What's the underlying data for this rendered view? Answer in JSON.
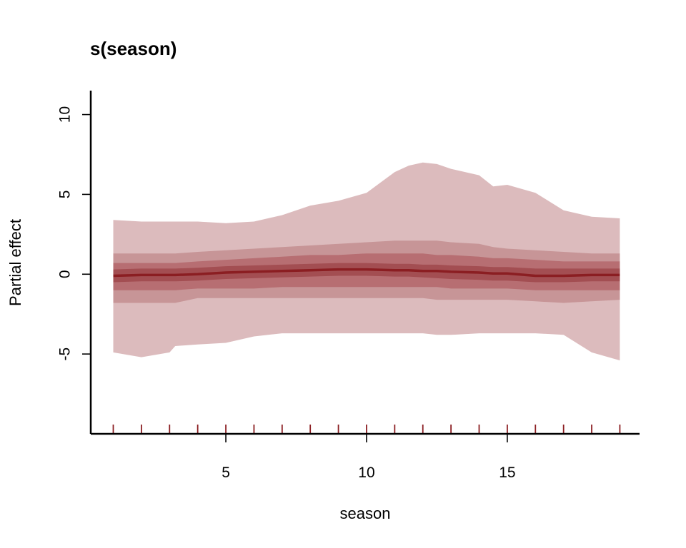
{
  "chart_data": {
    "type": "area",
    "title": "s(season)",
    "xlabel": "season",
    "ylabel": "Partial effect",
    "xlim": [
      0.2,
      19.7
    ],
    "ylim": [
      -10,
      11.5
    ],
    "x_ticks": [
      5,
      10,
      15
    ],
    "x_tick_labels": [
      "5",
      "10",
      "15"
    ],
    "y_ticks": [
      -5,
      0,
      5,
      10
    ],
    "y_tick_labels": [
      "-5",
      "0",
      "5",
      "10"
    ],
    "rug": [
      1,
      2,
      3,
      4,
      5,
      6,
      7,
      8,
      9,
      10,
      11,
      12,
      13,
      14,
      15,
      16,
      17,
      18,
      19
    ],
    "x": [
      1,
      2,
      3,
      3.2,
      4,
      5,
      6,
      7,
      8,
      9,
      10,
      11,
      11.5,
      12,
      12.5,
      13,
      14,
      14.5,
      15,
      16,
      17,
      18,
      19
    ],
    "median": [
      -0.1,
      -0.05,
      -0.05,
      -0.05,
      0.0,
      0.1,
      0.15,
      0.2,
      0.25,
      0.3,
      0.3,
      0.25,
      0.25,
      0.2,
      0.2,
      0.15,
      0.1,
      0.05,
      0.05,
      -0.1,
      -0.1,
      -0.05,
      -0.05
    ],
    "bands": [
      {
        "level": "outer",
        "upper": [
          3.4,
          3.3,
          3.3,
          3.3,
          3.3,
          3.2,
          3.3,
          3.7,
          4.3,
          4.6,
          5.1,
          6.4,
          6.8,
          7.0,
          6.9,
          6.6,
          6.2,
          5.5,
          5.6,
          5.1,
          4.0,
          3.6,
          3.5
        ],
        "lower": [
          -4.9,
          -5.2,
          -4.9,
          -4.5,
          -4.4,
          -4.3,
          -3.9,
          -3.7,
          -3.7,
          -3.7,
          -3.7,
          -3.7,
          -3.7,
          -3.7,
          -3.8,
          -3.8,
          -3.7,
          -3.7,
          -3.7,
          -3.7,
          -3.8,
          -4.9,
          -5.4
        ],
        "color": "#dcbbbd"
      },
      {
        "level": "middle",
        "upper": [
          1.3,
          1.3,
          1.3,
          1.3,
          1.4,
          1.5,
          1.6,
          1.7,
          1.8,
          1.9,
          2.0,
          2.1,
          2.1,
          2.1,
          2.1,
          2.0,
          1.9,
          1.7,
          1.6,
          1.5,
          1.4,
          1.3,
          1.3
        ],
        "lower": [
          -1.8,
          -1.8,
          -1.8,
          -1.8,
          -1.5,
          -1.5,
          -1.5,
          -1.5,
          -1.5,
          -1.5,
          -1.5,
          -1.5,
          -1.5,
          -1.5,
          -1.6,
          -1.6,
          -1.6,
          -1.6,
          -1.6,
          -1.7,
          -1.8,
          -1.7,
          -1.6
        ],
        "color": "#c79597"
      },
      {
        "level": "inner",
        "upper": [
          0.7,
          0.7,
          0.7,
          0.7,
          0.8,
          0.9,
          1.0,
          1.1,
          1.2,
          1.2,
          1.3,
          1.3,
          1.3,
          1.3,
          1.2,
          1.2,
          1.1,
          1.0,
          1.0,
          0.9,
          0.8,
          0.8,
          0.8
        ],
        "lower": [
          -1.0,
          -1.0,
          -1.0,
          -1.0,
          -0.9,
          -0.9,
          -0.9,
          -0.8,
          -0.8,
          -0.8,
          -0.8,
          -0.8,
          -0.8,
          -0.8,
          -0.8,
          -0.9,
          -0.9,
          -0.9,
          -0.9,
          -1.0,
          -1.0,
          -1.0,
          -1.0
        ],
        "color": "#b76e72"
      },
      {
        "level": "core",
        "upper": [
          0.3,
          0.35,
          0.35,
          0.35,
          0.4,
          0.5,
          0.55,
          0.6,
          0.65,
          0.7,
          0.7,
          0.65,
          0.65,
          0.6,
          0.6,
          0.55,
          0.5,
          0.45,
          0.45,
          0.35,
          0.35,
          0.35,
          0.35
        ],
        "lower": [
          -0.5,
          -0.45,
          -0.45,
          -0.45,
          -0.4,
          -0.3,
          -0.25,
          -0.2,
          -0.15,
          -0.1,
          -0.1,
          -0.15,
          -0.15,
          -0.2,
          -0.25,
          -0.3,
          -0.35,
          -0.4,
          -0.4,
          -0.5,
          -0.5,
          -0.45,
          -0.45
        ],
        "color": "#a34e52"
      }
    ],
    "median_color": "#8b1e22",
    "rug_color": "#8b1e22",
    "grid": false,
    "legend": "none"
  }
}
